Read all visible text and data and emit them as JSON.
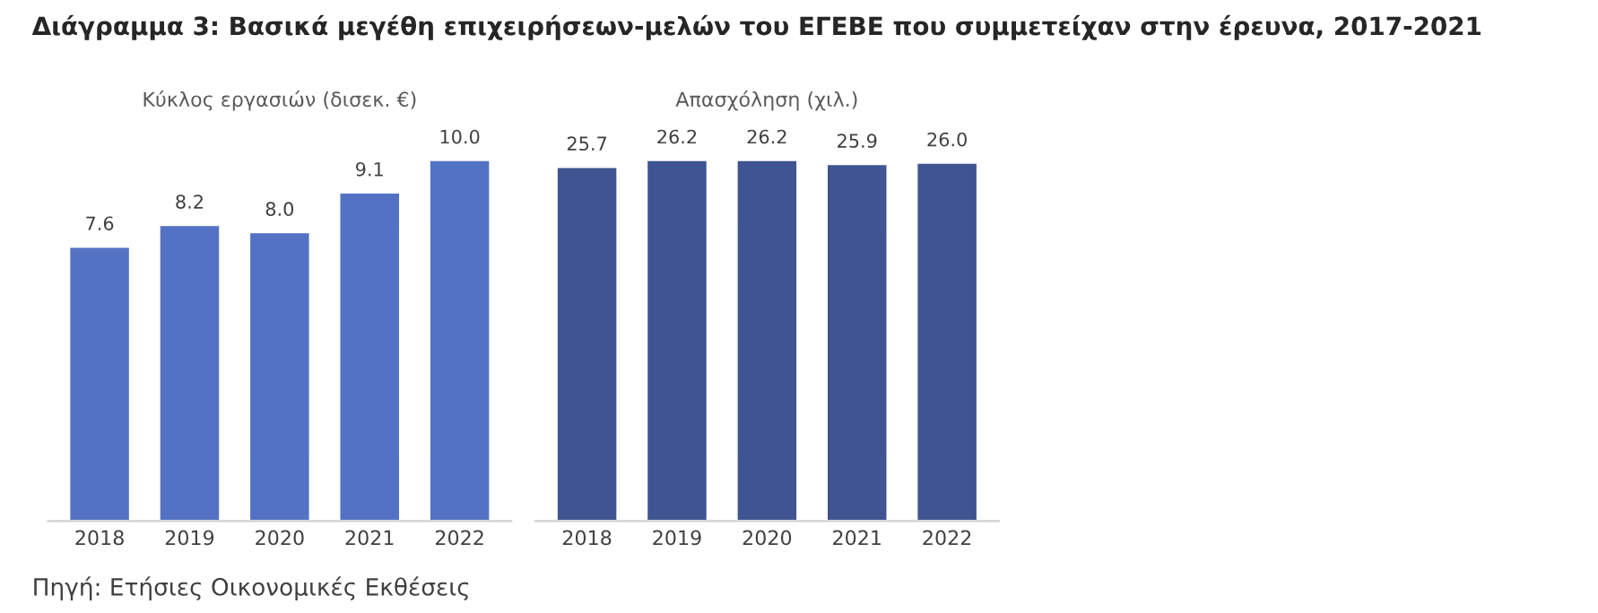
{
  "chart_data": [
    {
      "type": "bar",
      "title": "Διάγραμμα 3: Βασικά μεγέθη επιχειρήσεων-μελών του ΕΓΕΒΕ που συμμετείχαν στην έρευνα, 2017-2021",
      "subtitle": "Κύκλος εργασιών (δισεκ. €)",
      "categories": [
        "2018",
        "2019",
        "2020",
        "2021",
        "2022"
      ],
      "series": [
        {
          "color": "#5472c4",
          "values": [
            7.6,
            8.2,
            8.0,
            9.1,
            10.0
          ],
          "value_labels": [
            "7.6",
            "8.2",
            "8.0",
            "9.1",
            "10.0"
          ]
        }
      ],
      "tick_labels": "x",
      "annotations": [
        "Πηγή: Ετήσιες Οικονομικές Εκθέσεις"
      ]
    },
    {
      "type": "bar",
      "subtitle": "Απασχόληση (χιλ.)",
      "categories": [
        "2018",
        "2019",
        "2020",
        "2021",
        "2022"
      ],
      "series": [
        {
          "color": "#3f5491",
          "values": [
            25.7,
            26.2,
            26.2,
            25.9,
            26.0
          ],
          "value_labels": [
            "25.7",
            "26.2",
            "26.2",
            "25.9",
            "26.0"
          ]
        }
      ],
      "tick_labels": "x"
    }
  ]
}
